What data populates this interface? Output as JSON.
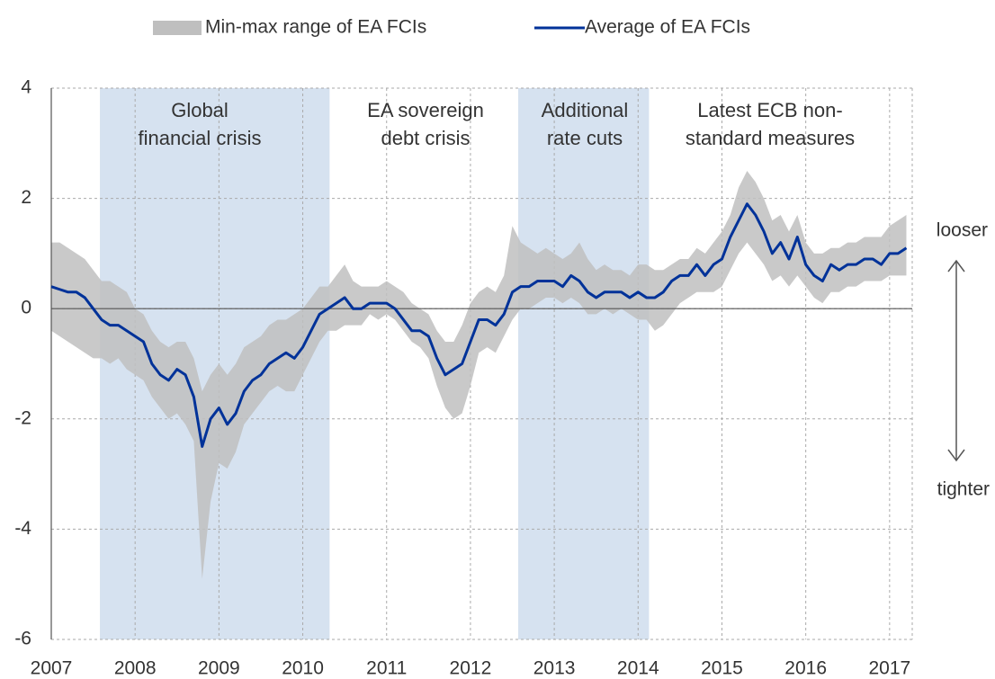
{
  "chart_data": {
    "type": "band-line",
    "x": [
      2007.0,
      2007.1,
      2007.2,
      2007.3,
      2007.4,
      2007.5,
      2007.6,
      2007.7,
      2007.8,
      2007.9,
      2008.0,
      2008.1,
      2008.2,
      2008.3,
      2008.4,
      2008.5,
      2008.6,
      2008.7,
      2008.8,
      2008.9,
      2009.0,
      2009.1,
      2009.2,
      2009.3,
      2009.4,
      2009.5,
      2009.6,
      2009.7,
      2009.8,
      2009.9,
      2010.0,
      2010.1,
      2010.2,
      2010.3,
      2010.4,
      2010.5,
      2010.6,
      2010.7,
      2010.8,
      2010.9,
      2011.0,
      2011.1,
      2011.2,
      2011.3,
      2011.4,
      2011.5,
      2011.6,
      2011.7,
      2011.8,
      2011.9,
      2012.0,
      2012.1,
      2012.2,
      2012.3,
      2012.4,
      2012.5,
      2012.6,
      2012.7,
      2012.8,
      2012.9,
      2013.0,
      2013.1,
      2013.2,
      2013.3,
      2013.4,
      2013.5,
      2013.6,
      2013.7,
      2013.8,
      2013.9,
      2014.0,
      2014.1,
      2014.2,
      2014.3,
      2014.4,
      2014.5,
      2014.6,
      2014.7,
      2014.8,
      2014.9,
      2015.0,
      2015.1,
      2015.2,
      2015.3,
      2015.4,
      2015.5,
      2015.6,
      2015.7,
      2015.8,
      2015.9,
      2016.0,
      2016.1,
      2016.2,
      2016.3,
      2016.4,
      2016.5,
      2016.6,
      2016.7,
      2016.8,
      2016.9,
      2017.0,
      2017.1,
      2017.2
    ],
    "series": [
      {
        "name": "Min-max range of EA FCIs",
        "color": "#bfbfbf",
        "high": [
          1.2,
          1.2,
          1.1,
          1.0,
          0.9,
          0.7,
          0.5,
          0.5,
          0.4,
          0.3,
          0.0,
          -0.1,
          -0.4,
          -0.6,
          -0.7,
          -0.6,
          -0.6,
          -0.9,
          -1.5,
          -1.2,
          -1.0,
          -1.2,
          -1.0,
          -0.7,
          -0.6,
          -0.5,
          -0.3,
          -0.2,
          -0.2,
          -0.1,
          0.0,
          0.2,
          0.4,
          0.4,
          0.6,
          0.8,
          0.5,
          0.4,
          0.4,
          0.4,
          0.5,
          0.4,
          0.3,
          0.1,
          0.0,
          -0.1,
          -0.4,
          -0.6,
          -0.6,
          -0.3,
          0.1,
          0.3,
          0.4,
          0.3,
          0.6,
          1.5,
          1.2,
          1.1,
          1.0,
          1.1,
          1.0,
          0.9,
          1.0,
          1.2,
          0.9,
          0.7,
          0.8,
          0.7,
          0.7,
          0.6,
          0.8,
          0.8,
          0.7,
          0.7,
          0.8,
          0.9,
          0.9,
          1.1,
          1.0,
          1.2,
          1.4,
          1.7,
          2.2,
          2.5,
          2.3,
          2.0,
          1.6,
          1.7,
          1.4,
          1.7,
          1.2,
          1.0,
          1.0,
          1.1,
          1.1,
          1.2,
          1.2,
          1.3,
          1.3,
          1.3,
          1.5,
          1.6,
          1.7
        ],
        "low": [
          -0.4,
          -0.5,
          -0.6,
          -0.7,
          -0.8,
          -0.9,
          -0.9,
          -1.0,
          -0.9,
          -1.1,
          -1.2,
          -1.3,
          -1.6,
          -1.8,
          -2.0,
          -1.9,
          -2.1,
          -2.4,
          -4.9,
          -3.5,
          -2.8,
          -2.9,
          -2.6,
          -2.1,
          -1.9,
          -1.7,
          -1.5,
          -1.4,
          -1.5,
          -1.5,
          -1.2,
          -0.9,
          -0.6,
          -0.4,
          -0.4,
          -0.3,
          -0.3,
          -0.3,
          -0.1,
          -0.2,
          -0.1,
          -0.2,
          -0.4,
          -0.6,
          -0.7,
          -0.9,
          -1.4,
          -1.8,
          -2.0,
          -1.9,
          -1.4,
          -0.8,
          -0.7,
          -0.8,
          -0.5,
          -0.2,
          0.0,
          0.0,
          0.1,
          0.2,
          0.2,
          0.1,
          0.2,
          0.1,
          -0.1,
          -0.1,
          0.0,
          -0.1,
          0.0,
          -0.1,
          -0.2,
          -0.2,
          -0.4,
          -0.3,
          -0.1,
          0.1,
          0.2,
          0.3,
          0.3,
          0.3,
          0.4,
          0.7,
          1.0,
          1.2,
          1.0,
          0.8,
          0.5,
          0.6,
          0.4,
          0.6,
          0.4,
          0.2,
          0.1,
          0.3,
          0.3,
          0.4,
          0.4,
          0.5,
          0.5,
          0.5,
          0.6,
          0.6,
          0.6
        ]
      },
      {
        "name": "Average of EA FCIs",
        "color": "#003299",
        "values": [
          0.4,
          0.35,
          0.3,
          0.3,
          0.2,
          0.0,
          -0.2,
          -0.3,
          -0.3,
          -0.4,
          -0.5,
          -0.6,
          -1.0,
          -1.2,
          -1.3,
          -1.1,
          -1.2,
          -1.6,
          -2.5,
          -2.0,
          -1.8,
          -2.1,
          -1.9,
          -1.5,
          -1.3,
          -1.2,
          -1.0,
          -0.9,
          -0.8,
          -0.9,
          -0.7,
          -0.4,
          -0.1,
          0.0,
          0.1,
          0.2,
          0.0,
          0.0,
          0.1,
          0.1,
          0.1,
          0.0,
          -0.2,
          -0.4,
          -0.4,
          -0.5,
          -0.9,
          -1.2,
          -1.1,
          -1.0,
          -0.6,
          -0.2,
          -0.2,
          -0.3,
          -0.1,
          0.3,
          0.4,
          0.4,
          0.5,
          0.5,
          0.5,
          0.4,
          0.6,
          0.5,
          0.3,
          0.2,
          0.3,
          0.3,
          0.3,
          0.2,
          0.3,
          0.2,
          0.2,
          0.3,
          0.5,
          0.6,
          0.6,
          0.8,
          0.6,
          0.8,
          0.9,
          1.3,
          1.6,
          1.9,
          1.7,
          1.4,
          1.0,
          1.2,
          0.9,
          1.3,
          0.8,
          0.6,
          0.5,
          0.8,
          0.7,
          0.8,
          0.8,
          0.9,
          0.9,
          0.8,
          1.0,
          1.0,
          1.1
        ]
      }
    ],
    "xlim": [
      2007,
      2017.27
    ],
    "xticks": [
      2007,
      2008,
      2009,
      2010,
      2011,
      2012,
      2013,
      2014,
      2015,
      2016,
      2017
    ],
    "ylim": [
      -6,
      4
    ],
    "yticks": [
      -6,
      -4,
      -2,
      0,
      2,
      4
    ],
    "grid": true,
    "shaded_periods": [
      {
        "start": 2007.58,
        "end": 2010.32
      },
      {
        "start": 2012.57,
        "end": 2014.13
      }
    ],
    "shade_color": "#d6e2f0",
    "annotations": [
      {
        "lines": [
          "Global",
          "financial crisis"
        ]
      },
      {
        "lines": [
          "EA sovereign",
          "debt crisis"
        ]
      },
      {
        "lines": [
          "Additional",
          "rate cuts"
        ]
      },
      {
        "lines": [
          "Latest ECB non-",
          "standard measures"
        ]
      }
    ],
    "direction_labels": [
      "looser",
      "tighter"
    ]
  }
}
